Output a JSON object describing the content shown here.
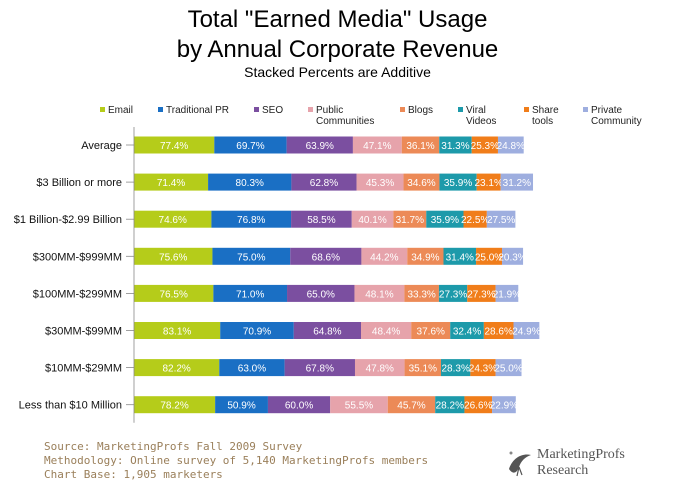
{
  "header": {
    "title_line1": "Total \"Earned Media\" Usage",
    "title_line2": "by Annual Corporate  Revenue",
    "subtitle": "Stacked Percents are Additive"
  },
  "footer": {
    "source": "Source: MarketingProfs Fall 2009 Survey",
    "methodology": "Methodology: Online survey of 5,140 MarketingProfs members",
    "base": "Chart Base: 1,905  marketers"
  },
  "logo": {
    "name": "MarketingProfs",
    "sub": "Research"
  },
  "chart_data": {
    "type": "bar",
    "stacked": true,
    "orientation": "horizontal",
    "categories": [
      "Average",
      "$3 Billion or more",
      "$1 Billion-$2.99 Billion",
      "$300MM-$999MM",
      "$100MM-$299MM",
      "$30MM-$99MM",
      "$10MM-$29MM",
      "Less than $10 Million"
    ],
    "series": [
      {
        "name": "Email",
        "color": "#b5cc1a",
        "labels": [
          "77.4%",
          "71.4%",
          "74.6%",
          "75.6%",
          "76.5%",
          "83.1%",
          "82.2%",
          "78.2%"
        ],
        "values": [
          77.4,
          71.4,
          74.6,
          75.6,
          76.5,
          83.1,
          82.2,
          78.2
        ]
      },
      {
        "name": "Traditional PR",
        "color": "#1a6fc4",
        "labels": [
          "69.7%",
          "80.3%",
          "76.8%",
          "75.0%",
          "71.0%",
          "70.9%",
          "63.0%",
          "50.9%"
        ],
        "values": [
          69.7,
          80.3,
          76.8,
          75.0,
          71.0,
          70.9,
          63.0,
          50.9
        ]
      },
      {
        "name": "SEO",
        "color": "#7b4fa0",
        "labels": [
          "63.9%",
          "62.8%",
          "58.5%",
          "68.6%",
          "65.0%",
          "64.8%",
          "67.8%",
          "60.0%"
        ],
        "values": [
          63.9,
          62.8,
          58.5,
          68.6,
          65.0,
          64.8,
          67.8,
          60.0
        ]
      },
      {
        "name": "Public Communities",
        "color": "#e6a3ab",
        "labels": [
          "47.1%",
          "45.3%",
          "40.1%",
          "44.2%",
          "48.1%",
          "48.4%",
          "47.8%",
          "55.5%"
        ],
        "values": [
          47.1,
          45.3,
          40.1,
          44.2,
          48.1,
          48.4,
          47.8,
          55.5
        ]
      },
      {
        "name": "Blogs",
        "color": "#ec8a57",
        "labels": [
          "36.1%",
          "34.6%",
          "31.7%",
          "34.9%",
          "33.3%",
          "37.6%",
          "35.1%",
          "45.7%"
        ],
        "values": [
          36.1,
          34.6,
          31.7,
          34.9,
          33.3,
          37.6,
          35.1,
          45.7
        ]
      },
      {
        "name": "Viral Videos",
        "color": "#1d9aaa",
        "labels": [
          "31.3%",
          "35.9%",
          "35.9%",
          "31.4%",
          "27.3%",
          "32.4%",
          "28.3%",
          "28.2%"
        ],
        "values": [
          31.3,
          35.9,
          35.9,
          31.4,
          27.3,
          32.4,
          28.3,
          28.2
        ]
      },
      {
        "name": "Share tools",
        "color": "#f07d1a",
        "labels": [
          "25.3%",
          "23.1%",
          "22.5%",
          "25.0%",
          "27.3%",
          "28.6%",
          "24.3%",
          "26.6%"
        ],
        "values": [
          25.3,
          23.1,
          22.5,
          25.0,
          27.3,
          28.6,
          24.3,
          26.6
        ]
      },
      {
        "name": "Private Community",
        "color": "#9eaedf",
        "labels": [
          "24.8%",
          "31.2%",
          "27.5%",
          "20.3%",
          "21.9%",
          "24.9%",
          "25.0%",
          "22.9%"
        ],
        "values": [
          24.8,
          31.2,
          27.5,
          20.3,
          21.9,
          24.9,
          25.0,
          22.9
        ]
      }
    ],
    "legend_position": "top",
    "grid": false
  }
}
